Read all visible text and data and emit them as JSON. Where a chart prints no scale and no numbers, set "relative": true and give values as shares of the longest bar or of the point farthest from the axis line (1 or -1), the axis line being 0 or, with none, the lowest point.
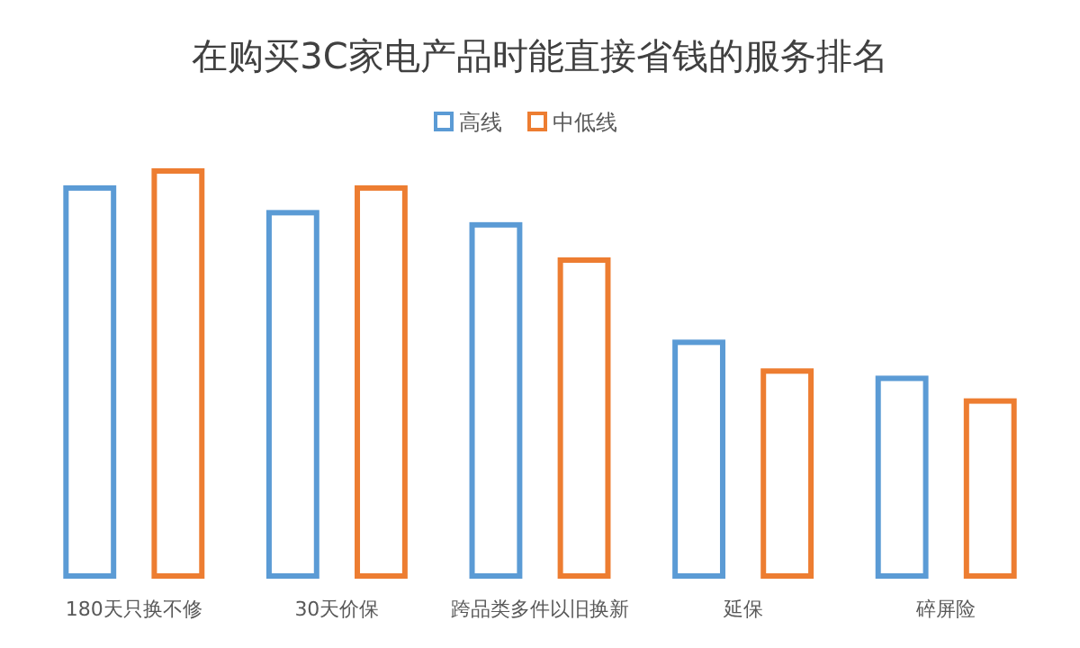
{
  "chart_data": {
    "type": "bar",
    "title": "在购买3C家电产品时能直接省钱的服务排名",
    "relative": true,
    "legend": "top",
    "categories": [
      "180天只换不修",
      "30天价保",
      "跨品类多件以旧换新",
      "延保",
      "碎屏险"
    ],
    "series": [
      {
        "name": "高线",
        "color": "#5b9bd5",
        "values": [
          0.958,
          0.897,
          0.867,
          0.577,
          0.488
        ]
      },
      {
        "name": "中低线",
        "color": "#ed7d31",
        "values": [
          1,
          0.958,
          0.78,
          0.506,
          0.432
        ]
      }
    ]
  }
}
